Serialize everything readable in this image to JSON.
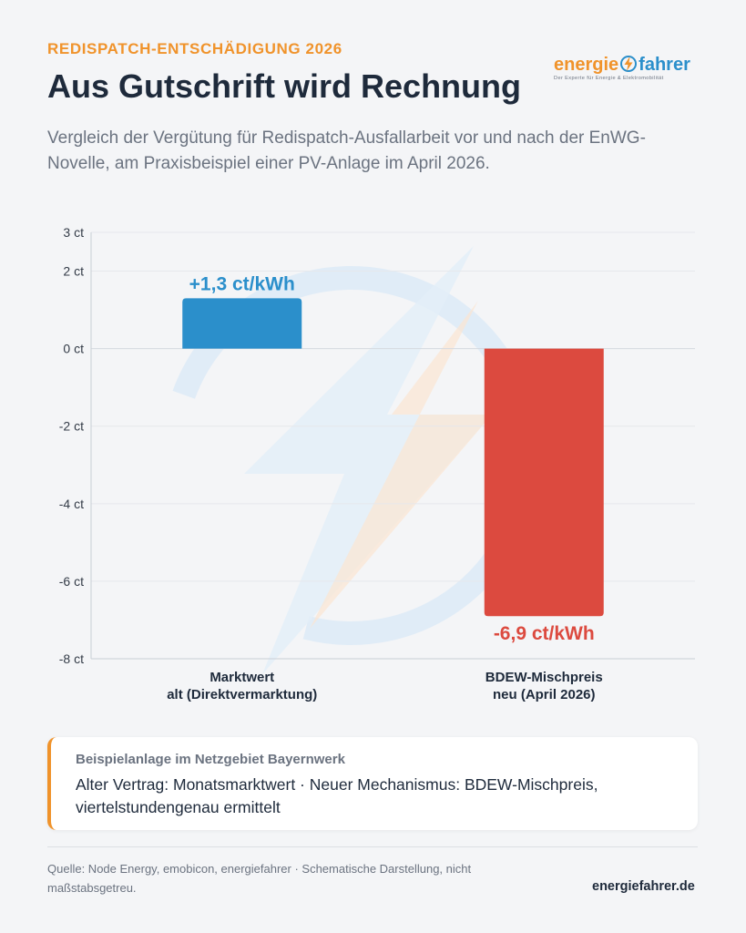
{
  "header": {
    "kicker": "REDISPATCH-ENTSCHÄDIGUNG 2026",
    "title": "Aus Gutschrift wird Rechnung",
    "subtitle": "Vergleich der Vergütung für Redispatch-Ausfallarbeit vor und nach der EnWG-Novelle, am Praxisbeispiel einer PV-Anlage im April 2026."
  },
  "logo": {
    "word_part1": "energie",
    "word_part2": "fahrer",
    "tagline": "Der Experte für Energie & Elektromobilität"
  },
  "colors": {
    "accent": "#f0932b",
    "positive": "#2b8fcb",
    "negative": "#dc4a3f",
    "watermark_blue": "#d4e6f5",
    "watermark_orange": "#fbe3cc"
  },
  "chart_data": {
    "type": "bar",
    "categories": [
      [
        "Marktwert",
        "alt (Direktvermarktung)"
      ],
      [
        "BDEW-Mischpreis",
        "neu (April 2026)"
      ]
    ],
    "values": [
      1.3,
      -6.9
    ],
    "data_labels": [
      "+1,3 ct/kWh",
      "-6,9 ct/kWh"
    ],
    "bar_colors": [
      "#2b8fcb",
      "#dc4a3f"
    ],
    "yticks": [
      3,
      2,
      0,
      -2,
      -4,
      -6,
      -8
    ],
    "ytick_labels": [
      "3 ct",
      "2 ct",
      "0 ct",
      "-2 ct",
      "-4 ct",
      "-6 ct",
      "-8 ct"
    ],
    "ylim": [
      -8,
      3
    ],
    "grid": true
  },
  "note": {
    "title": "Beispielanlage im Netzgebiet Bayernwerk",
    "body": "Alter Vertrag: Monatsmarktwert · Neuer Mechanismus: BDEW-Mischpreis, viertelstundengenau ermittelt"
  },
  "footer": {
    "source": "Quelle: Node Energy, emobicon, energiefahrer · Schematische Darstellung, nicht maßstabsgetreu.",
    "site": "energiefahrer.de"
  }
}
